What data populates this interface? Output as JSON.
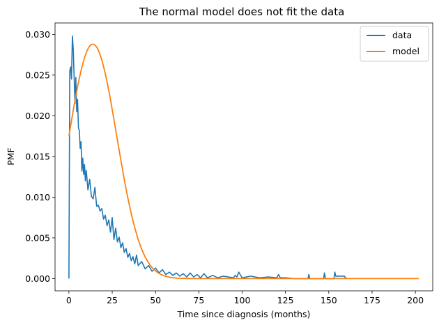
{
  "chart_data": {
    "type": "line",
    "title": "The normal model does not fit the data",
    "xlabel": "Time since diagnosis (months)",
    "ylabel": "PMF",
    "xlim": [
      -8,
      210
    ],
    "ylim": [
      -0.0015,
      0.0314
    ],
    "xticks": [
      0,
      25,
      50,
      75,
      100,
      125,
      150,
      175,
      200
    ],
    "xtick_labels": [
      "0",
      "25",
      "50",
      "75",
      "100",
      "125",
      "150",
      "175",
      "200"
    ],
    "yticks": [
      0.0,
      0.005,
      0.01,
      0.015,
      0.02,
      0.025,
      0.03
    ],
    "ytick_labels": [
      "0.000",
      "0.005",
      "0.010",
      "0.015",
      "0.020",
      "0.025",
      "0.030"
    ],
    "grid": false,
    "legend_position": "top-right",
    "series": [
      {
        "name": "data",
        "color": "#1f77b4",
        "x": [
          0,
          0.5,
          1,
          1.5,
          2,
          2.5,
          3,
          3.5,
          4,
          4.5,
          5,
          5.5,
          6,
          6.5,
          7,
          7.5,
          8,
          8.5,
          9,
          9.5,
          10,
          11,
          12,
          13,
          14,
          15,
          16,
          17,
          18,
          19,
          20,
          21,
          22,
          23,
          24,
          25,
          26,
          27,
          28,
          29,
          30,
          31,
          32,
          33,
          34,
          35,
          36,
          37,
          38,
          39,
          40,
          42,
          44,
          46,
          48,
          50,
          52,
          54,
          56,
          58,
          60,
          62,
          64,
          66,
          68,
          70,
          72,
          74,
          76,
          78,
          80,
          83,
          86,
          89,
          92,
          95,
          96,
          97,
          98,
          100,
          105,
          110,
          115,
          120,
          121,
          122,
          125,
          130,
          135,
          138,
          138.5,
          139,
          142,
          145,
          147,
          147.5,
          148,
          151,
          152,
          153,
          153.5,
          154,
          156,
          158,
          159,
          160
        ],
        "y": [
          0.0,
          0.0255,
          0.026,
          0.0245,
          0.0298,
          0.0282,
          0.025,
          0.0215,
          0.0247,
          0.0205,
          0.022,
          0.0185,
          0.0182,
          0.016,
          0.0168,
          0.0132,
          0.0148,
          0.0128,
          0.014,
          0.012,
          0.0133,
          0.0109,
          0.0122,
          0.0101,
          0.0098,
          0.0112,
          0.0089,
          0.009,
          0.0083,
          0.0086,
          0.0073,
          0.0078,
          0.0065,
          0.0072,
          0.0057,
          0.0075,
          0.0048,
          0.0062,
          0.0045,
          0.0051,
          0.0038,
          0.0044,
          0.0032,
          0.0037,
          0.0026,
          0.0031,
          0.0022,
          0.0027,
          0.0018,
          0.0029,
          0.0016,
          0.0021,
          0.0012,
          0.0016,
          0.0009,
          0.0013,
          0.0007,
          0.0011,
          0.0005,
          0.0008,
          0.0004,
          0.0007,
          0.0003,
          0.0006,
          0.0002,
          0.0007,
          0.0002,
          0.0005,
          0.0001,
          0.0006,
          0.0001,
          0.0004,
          0.0001,
          0.0003,
          0.0002,
          0.0001,
          0.0004,
          0.0002,
          0.0008,
          0.0001,
          0.0003,
          0.0001,
          0.0002,
          0.0001,
          0.0005,
          0.0001,
          0.0001,
          0.0,
          0.0,
          0.0,
          0.0005,
          0.0,
          0.0,
          0.0,
          0.0,
          0.0007,
          0.0,
          0.0,
          0.0,
          0.0,
          0.0008,
          0.0003,
          0.0003,
          0.0003,
          0.0003,
          0.0
        ]
      },
      {
        "name": "model",
        "color": "#ff7f0e",
        "mean": 13.8,
        "sd": 13.85,
        "x_start": 0,
        "x_end": 202
      }
    ]
  }
}
